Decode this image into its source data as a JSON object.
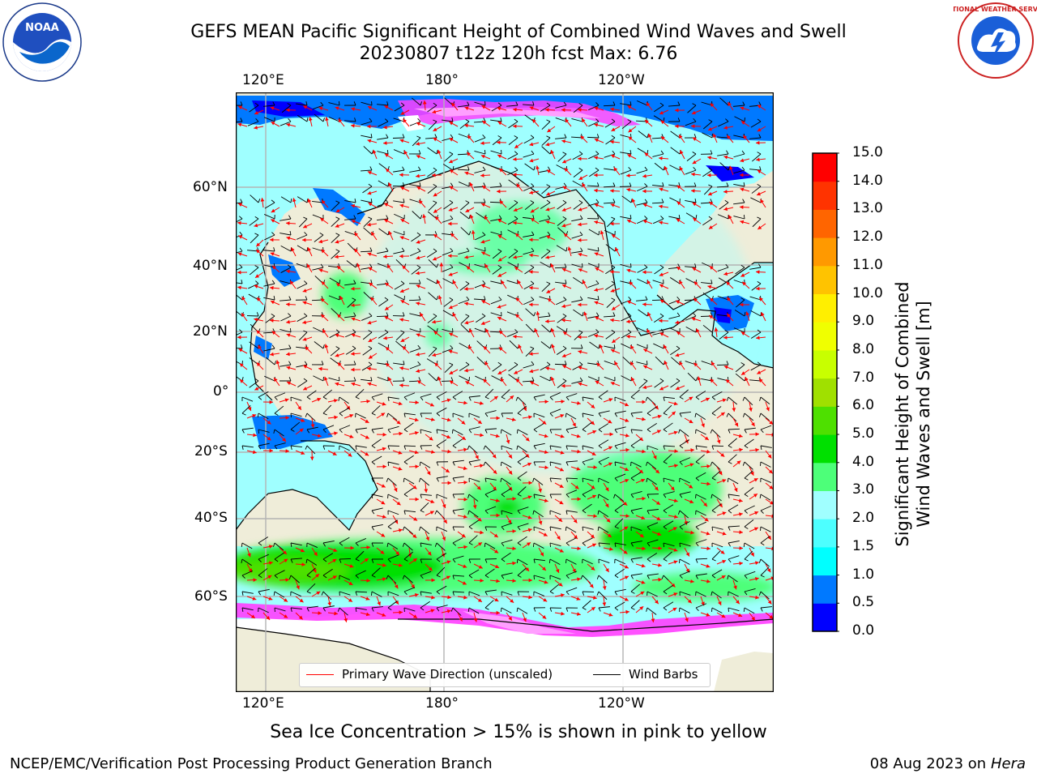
{
  "title": {
    "line1": "GEFS MEAN Pacific Significant Height of Combined Wind Waves and Swell",
    "line2": "20230807 t12z 120h fcst   Max: 6.76"
  },
  "map": {
    "top_lon_labels": [
      "120°E",
      "180°",
      "120°W"
    ],
    "bottom_lon_labels": [
      "120°E",
      "180°",
      "120°W"
    ],
    "lat_labels": [
      "60°N",
      "40°N",
      "20°N",
      "0°",
      "20°S",
      "40°S",
      "60°S"
    ],
    "land_color": "#efedd9",
    "ocean_color": "#9fffff",
    "ice_colors": [
      "#ff3fff",
      "#ff9fff",
      "#ffd0d0"
    ]
  },
  "colorbar": {
    "label_line1": "Significant Height of Combined",
    "label_line2": "Wind Waves and Swell [m]",
    "ticks": [
      "0.0",
      "0.5",
      "1.0",
      "1.5",
      "2.0",
      "3.0",
      "4.0",
      "5.0",
      "6.0",
      "7.0",
      "8.0",
      "9.0",
      "10.0",
      "11.0",
      "12.0",
      "13.0",
      "14.0",
      "15.0"
    ],
    "colors": [
      "#0000ff",
      "#0079ff",
      "#00ffff",
      "#4dffff",
      "#a0ffff",
      "#4dff79",
      "#00e000",
      "#4ee000",
      "#a0e000",
      "#c8ff00",
      "#f0ff00",
      "#ffef00",
      "#ffc300",
      "#ff9900",
      "#ff6500",
      "#ff3300",
      "#ff0000"
    ]
  },
  "legend": {
    "wave_dir": "Primary Wave Direction (unscaled)",
    "wave_dir_color": "#ff0000",
    "wind_barbs": "Wind Barbs",
    "wind_barbs_color": "#000000"
  },
  "ice_note": "Sea Ice Concentration > 15% is shown in pink to yellow",
  "footer": {
    "left": "NCEP/EMC/Verification Post Processing Product Generation Branch",
    "date": "08 Aug 2023 on",
    "machine": "Hera"
  },
  "logos": {
    "noaa_text": "NOAA",
    "nws_text": "NATIONAL WEATHER SERVICE"
  }
}
